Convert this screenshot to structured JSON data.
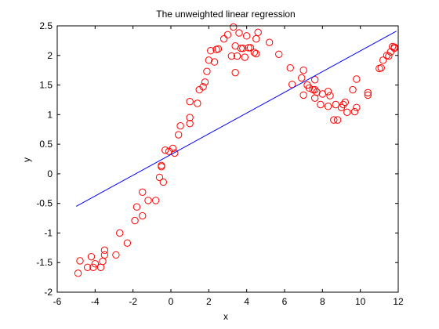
{
  "chart_data": {
    "type": "scatter",
    "title": "The unweighted linear regression",
    "xlabel": "x",
    "ylabel": "y",
    "xlim": [
      -6,
      12
    ],
    "ylim": [
      -2,
      2.5
    ],
    "xticks": [
      -6,
      -4,
      -2,
      0,
      2,
      4,
      6,
      8,
      10,
      12
    ],
    "yticks": [
      -2,
      -1.5,
      -1,
      -0.5,
      0,
      0.5,
      1,
      1.5,
      2,
      2.5
    ],
    "xtick_labels": [
      "-6",
      "-4",
      "-2",
      "0",
      "2",
      "4",
      "6",
      "8",
      "10",
      "12"
    ],
    "ytick_labels": [
      "-2",
      "-1.5",
      "-1",
      "-0.5",
      "0",
      "0.5",
      "1",
      "1.5",
      "2",
      "2.5"
    ],
    "grid": false,
    "series": [
      {
        "type": "scatter",
        "color": "#ff0000",
        "marker": "circle-open",
        "points": [
          [
            -4.9,
            -1.68
          ],
          [
            -4.8,
            -1.47
          ],
          [
            -4.4,
            -1.58
          ],
          [
            -4.2,
            -1.4
          ],
          [
            -4.1,
            -1.58
          ],
          [
            -4.0,
            -1.52
          ],
          [
            -3.7,
            -1.58
          ],
          [
            -3.6,
            -1.48
          ],
          [
            -3.5,
            -1.37
          ],
          [
            -3.5,
            -1.29
          ],
          [
            -2.9,
            -1.37
          ],
          [
            -2.7,
            -1.0
          ],
          [
            -2.3,
            -1.17
          ],
          [
            -1.9,
            -0.79
          ],
          [
            -1.8,
            -0.56
          ],
          [
            -1.5,
            -0.71
          ],
          [
            -1.5,
            -0.31
          ],
          [
            -1.2,
            -0.45
          ],
          [
            -0.8,
            -0.45
          ],
          [
            -0.6,
            -0.06
          ],
          [
            -0.5,
            0.12
          ],
          [
            -0.5,
            0.14
          ],
          [
            -0.4,
            -0.14
          ],
          [
            -0.3,
            0.4
          ],
          [
            -0.1,
            0.38
          ],
          [
            0.1,
            0.43
          ],
          [
            0.2,
            0.35
          ],
          [
            0.4,
            0.66
          ],
          [
            0.5,
            0.81
          ],
          [
            1.0,
            0.85
          ],
          [
            1.0,
            0.95
          ],
          [
            1.0,
            1.22
          ],
          [
            1.4,
            1.19
          ],
          [
            1.5,
            1.42
          ],
          [
            1.7,
            1.47
          ],
          [
            1.8,
            1.55
          ],
          [
            1.9,
            1.73
          ],
          [
            2.0,
            1.92
          ],
          [
            2.1,
            2.08
          ],
          [
            2.3,
            1.89
          ],
          [
            2.4,
            2.1
          ],
          [
            2.5,
            2.11
          ],
          [
            2.8,
            2.28
          ],
          [
            3.0,
            2.35
          ],
          [
            3.2,
            1.99
          ],
          [
            3.3,
            2.48
          ],
          [
            3.4,
            2.16
          ],
          [
            3.4,
            1.71
          ],
          [
            3.5,
            1.99
          ],
          [
            3.6,
            2.38
          ],
          [
            3.7,
            2.12
          ],
          [
            3.8,
            2.12
          ],
          [
            3.9,
            1.97
          ],
          [
            4.0,
            2.33
          ],
          [
            4.1,
            2.13
          ],
          [
            4.2,
            2.13
          ],
          [
            4.4,
            2.05
          ],
          [
            4.5,
            2.28
          ],
          [
            4.5,
            2.03
          ],
          [
            4.6,
            2.39
          ],
          [
            5.2,
            2.22
          ],
          [
            5.7,
            2.02
          ],
          [
            6.3,
            1.79
          ],
          [
            6.4,
            1.51
          ],
          [
            6.9,
            1.62
          ],
          [
            7.0,
            1.75
          ],
          [
            7.0,
            1.33
          ],
          [
            7.2,
            1.5
          ],
          [
            7.3,
            1.45
          ],
          [
            7.5,
            1.42
          ],
          [
            7.6,
            1.59
          ],
          [
            7.6,
            1.42
          ],
          [
            7.6,
            1.28
          ],
          [
            7.7,
            1.38
          ],
          [
            7.9,
            1.17
          ],
          [
            8.0,
            1.35
          ],
          [
            8.3,
            1.39
          ],
          [
            8.3,
            1.14
          ],
          [
            8.4,
            1.32
          ],
          [
            8.6,
            0.91
          ],
          [
            8.7,
            1.17
          ],
          [
            8.8,
            0.91
          ],
          [
            9.0,
            1.12
          ],
          [
            9.1,
            1.17
          ],
          [
            9.2,
            1.21
          ],
          [
            9.3,
            1.04
          ],
          [
            9.6,
            1.42
          ],
          [
            9.7,
            1.05
          ],
          [
            9.8,
            1.12
          ],
          [
            9.8,
            1.6
          ],
          [
            10.4,
            1.33
          ],
          [
            10.4,
            1.37
          ],
          [
            11.0,
            1.78
          ],
          [
            11.1,
            1.79
          ],
          [
            11.2,
            1.92
          ],
          [
            11.4,
            2.0
          ],
          [
            11.5,
            1.99
          ],
          [
            11.6,
            2.06
          ],
          [
            11.7,
            2.15
          ],
          [
            11.8,
            2.14
          ],
          [
            11.8,
            2.12
          ]
        ]
      },
      {
        "type": "line",
        "color": "#0000ff",
        "points": [
          [
            -5.0,
            -0.55
          ],
          [
            11.9,
            2.41
          ]
        ]
      }
    ]
  }
}
